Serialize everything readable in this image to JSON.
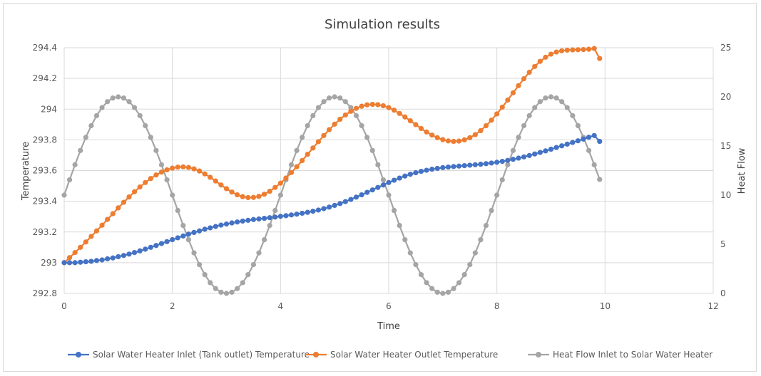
{
  "chart_data": {
    "type": "scatter",
    "title": "Simulation results",
    "xlabel": "Time",
    "ylabel_left": "Temperature",
    "ylabel_right": "Heat Flow",
    "xlim": [
      0,
      12
    ],
    "ylim_left": [
      292.8,
      294.4
    ],
    "ylim_right": [
      0,
      25
    ],
    "x_ticks": [
      "0",
      "2",
      "4",
      "6",
      "8",
      "10",
      "12"
    ],
    "y_left_ticks": [
      "292.8",
      "293",
      "293.2",
      "293.4",
      "293.6",
      "293.8",
      "294",
      "294.2",
      "294.4"
    ],
    "y_right_ticks": [
      "0",
      "5",
      "10",
      "15",
      "20",
      "25"
    ],
    "grid": true,
    "legend_position": "bottom",
    "series": [
      {
        "name": "Solar Water Heater Inlet (Tank outlet) Temperature",
        "axis": "left",
        "color": "#4472C4",
        "x": [
          0,
          0.1,
          0.2,
          0.3,
          0.4,
          0.5,
          0.6,
          0.7,
          0.8,
          0.9,
          1,
          1.1,
          1.2,
          1.3,
          1.4,
          1.5,
          1.6,
          1.7,
          1.8,
          1.9,
          2,
          2.1,
          2.2,
          2.3,
          2.4,
          2.5,
          2.6,
          2.7,
          2.8,
          2.9,
          3,
          3.1,
          3.2,
          3.3,
          3.4,
          3.5,
          3.6,
          3.7,
          3.8,
          3.9,
          4,
          4.1,
          4.2,
          4.3,
          4.4,
          4.5,
          4.6,
          4.7,
          4.8,
          4.9,
          5,
          5.1,
          5.2,
          5.3,
          5.4,
          5.5,
          5.6,
          5.7,
          5.8,
          5.9,
          6,
          6.1,
          6.2,
          6.3,
          6.4,
          6.5,
          6.6,
          6.7,
          6.8,
          6.9,
          7,
          7.1,
          7.2,
          7.3,
          7.4,
          7.5,
          7.6,
          7.7,
          7.8,
          7.9,
          8,
          8.1,
          8.2,
          8.3,
          8.4,
          8.5,
          8.6,
          8.7,
          8.8,
          8.9,
          9,
          9.1,
          9.2,
          9.3,
          9.4,
          9.5,
          9.6,
          9.7,
          9.8,
          9.9
        ],
        "y": [
          293.0,
          293.0,
          293.0,
          293.003,
          293.006,
          293.009,
          293.014,
          293.018,
          293.025,
          293.031,
          293.039,
          293.047,
          293.056,
          293.066,
          293.077,
          293.088,
          293.1,
          293.112,
          293.125,
          293.137,
          293.15,
          293.162,
          293.174,
          293.186,
          293.197,
          293.207,
          293.218,
          293.227,
          293.236,
          293.245,
          293.252,
          293.259,
          293.265,
          293.271,
          293.276,
          293.281,
          293.285,
          293.289,
          293.293,
          293.297,
          293.302,
          293.306,
          293.311,
          293.316,
          293.322,
          293.328,
          293.335,
          293.343,
          293.352,
          293.362,
          293.373,
          293.385,
          293.398,
          293.412,
          293.427,
          293.442,
          293.458,
          293.474,
          293.49,
          293.506,
          293.522,
          293.537,
          293.551,
          293.564,
          293.576,
          293.586,
          293.595,
          293.602,
          293.609,
          293.614,
          293.619,
          293.623,
          293.626,
          293.629,
          293.632,
          293.635,
          293.638,
          293.641,
          293.645,
          293.649,
          293.654,
          293.66,
          293.666,
          293.673,
          293.681,
          293.689,
          293.698,
          293.708,
          293.718,
          293.728,
          293.739,
          293.75,
          293.761,
          293.772,
          293.783,
          293.794,
          293.805,
          293.817,
          293.828,
          293.79
        ]
      },
      {
        "name": "Solar Water Heater Outlet Temperature",
        "axis": "left",
        "color": "#ED7D31",
        "x": [
          0,
          0.1,
          0.2,
          0.3,
          0.4,
          0.5,
          0.6,
          0.7,
          0.8,
          0.9,
          1,
          1.1,
          1.2,
          1.3,
          1.4,
          1.5,
          1.6,
          1.7,
          1.8,
          1.9,
          2,
          2.1,
          2.2,
          2.3,
          2.4,
          2.5,
          2.6,
          2.7,
          2.8,
          2.9,
          3,
          3.1,
          3.2,
          3.3,
          3.4,
          3.5,
          3.6,
          3.7,
          3.8,
          3.9,
          4,
          4.1,
          4.2,
          4.3,
          4.4,
          4.5,
          4.6,
          4.7,
          4.8,
          4.9,
          5,
          5.1,
          5.2,
          5.3,
          5.4,
          5.5,
          5.6,
          5.7,
          5.8,
          5.9,
          6,
          6.1,
          6.2,
          6.3,
          6.4,
          6.5,
          6.6,
          6.7,
          6.8,
          6.9,
          7,
          7.1,
          7.2,
          7.3,
          7.4,
          7.5,
          7.6,
          7.7,
          7.8,
          7.9,
          8,
          8.1,
          8.2,
          8.3,
          8.4,
          8.5,
          8.6,
          8.7,
          8.8,
          8.9,
          9,
          9.1,
          9.2,
          9.3,
          9.4,
          9.5,
          9.6,
          9.7,
          9.8,
          9.9
        ],
        "y": [
          293.0,
          293.033,
          293.066,
          293.1,
          293.135,
          293.171,
          293.207,
          293.244,
          293.282,
          293.319,
          293.357,
          293.393,
          293.428,
          293.462,
          293.493,
          293.522,
          293.548,
          293.571,
          293.59,
          293.605,
          293.616,
          293.622,
          293.624,
          293.62,
          293.611,
          293.597,
          293.578,
          293.556,
          293.532,
          293.506,
          293.482,
          293.46,
          293.442,
          293.43,
          293.424,
          293.425,
          293.432,
          293.446,
          293.465,
          293.49,
          293.518,
          293.551,
          293.587,
          293.625,
          293.665,
          293.706,
          293.747,
          293.788,
          293.828,
          293.866,
          293.902,
          293.934,
          293.962,
          293.986,
          294.005,
          294.019,
          294.028,
          294.031,
          294.029,
          294.022,
          294.01,
          293.993,
          293.972,
          293.949,
          293.924,
          293.899,
          293.874,
          293.851,
          293.831,
          293.814,
          293.801,
          293.793,
          293.79,
          293.792,
          293.8,
          293.814,
          293.834,
          293.86,
          293.892,
          293.928,
          293.969,
          294.013,
          294.059,
          294.106,
          294.153,
          294.198,
          294.24,
          294.278,
          294.311,
          294.338,
          294.358,
          294.372,
          294.38,
          294.384,
          294.386,
          294.387,
          294.388,
          294.39,
          294.395,
          294.33
        ]
      },
      {
        "name": "Heat Flow Inlet to Solar Water Heater",
        "axis": "right",
        "color": "#A5A5A5",
        "x": [
          0,
          0.1,
          0.2,
          0.3,
          0.4,
          0.5,
          0.6,
          0.7,
          0.8,
          0.9,
          1,
          1.1,
          1.2,
          1.3,
          1.4,
          1.5,
          1.6,
          1.7,
          1.8,
          1.9,
          2,
          2.1,
          2.2,
          2.3,
          2.4,
          2.5,
          2.6,
          2.7,
          2.8,
          2.9,
          3,
          3.1,
          3.2,
          3.3,
          3.4,
          3.5,
          3.6,
          3.7,
          3.8,
          3.9,
          4,
          4.1,
          4.2,
          4.3,
          4.4,
          4.5,
          4.6,
          4.7,
          4.8,
          4.9,
          5,
          5.1,
          5.2,
          5.3,
          5.4,
          5.5,
          5.6,
          5.7,
          5.8,
          5.9,
          6,
          6.1,
          6.2,
          6.3,
          6.4,
          6.5,
          6.6,
          6.7,
          6.8,
          6.9,
          7,
          7.1,
          7.2,
          7.3,
          7.4,
          7.5,
          7.6,
          7.7,
          7.8,
          7.9,
          8,
          8.1,
          8.2,
          8.3,
          8.4,
          8.5,
          8.6,
          8.7,
          8.8,
          8.9,
          9,
          9.1,
          9.2,
          9.3,
          9.4,
          9.5,
          9.6,
          9.7,
          9.8,
          9.9
        ],
        "y": [
          10.0,
          11.56,
          13.09,
          14.54,
          15.88,
          17.07,
          18.09,
          18.91,
          19.51,
          19.88,
          20.0,
          19.88,
          19.51,
          18.91,
          18.09,
          17.07,
          15.88,
          14.54,
          13.09,
          11.56,
          10.0,
          8.44,
          6.91,
          5.46,
          4.12,
          2.93,
          1.91,
          1.09,
          0.49,
          0.12,
          0.0,
          0.12,
          0.49,
          1.09,
          1.91,
          2.93,
          4.12,
          5.46,
          6.91,
          8.44,
          10.0,
          11.56,
          13.09,
          14.54,
          15.88,
          17.07,
          18.09,
          18.91,
          19.51,
          19.88,
          20.0,
          19.88,
          19.51,
          18.91,
          18.09,
          17.07,
          15.88,
          14.54,
          13.09,
          11.56,
          10.0,
          8.44,
          6.91,
          5.46,
          4.12,
          2.93,
          1.91,
          1.09,
          0.49,
          0.12,
          0.0,
          0.12,
          0.49,
          1.09,
          1.91,
          2.93,
          4.12,
          5.46,
          6.91,
          8.44,
          10.0,
          11.56,
          13.09,
          14.54,
          15.88,
          17.07,
          18.09,
          18.91,
          19.51,
          19.88,
          20.0,
          19.88,
          19.51,
          18.91,
          18.09,
          17.07,
          15.88,
          14.54,
          13.09,
          11.6
        ]
      }
    ]
  }
}
